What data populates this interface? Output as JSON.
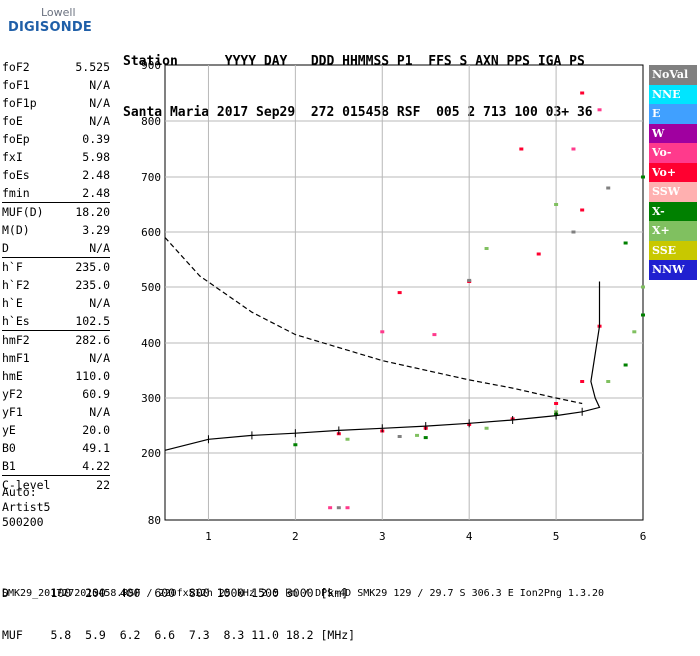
{
  "logo": {
    "top": "Lowell",
    "main": "DIGISONDE"
  },
  "header": {
    "line1": "Station      YYYY DAY   DDD HHMMSS P1  FFS S AXN PPS IGA PS",
    "line2": "Santa Maria 2017 Sep29  272 015458 RSF  005 2 713 100 03+ 36"
  },
  "params": [
    {
      "name": "foF2",
      "value": "5.525"
    },
    {
      "name": "foF1",
      "value": "N/A"
    },
    {
      "name": "foF1p",
      "value": "N/A"
    },
    {
      "name": "foE",
      "value": "N/A"
    },
    {
      "name": "foEp",
      "value": "0.39"
    },
    {
      "name": "fxI",
      "value": "5.98"
    },
    {
      "name": "foEs",
      "value": "2.48"
    },
    {
      "name": "fmin",
      "value": "2.48"
    },
    {
      "name": "MUF(D)",
      "value": "18.20"
    },
    {
      "name": "M(D)",
      "value": "3.29"
    },
    {
      "name": "D",
      "value": "N/A"
    },
    {
      "name": "h`F",
      "value": "235.0"
    },
    {
      "name": "h`F2",
      "value": "235.0"
    },
    {
      "name": "h`E",
      "value": "N/A"
    },
    {
      "name": "h`Es",
      "value": "102.5"
    },
    {
      "name": "hmF2",
      "value": "282.6"
    },
    {
      "name": "hmF1",
      "value": "N/A"
    },
    {
      "name": "hmE",
      "value": "110.0"
    },
    {
      "name": "yF2",
      "value": "60.9"
    },
    {
      "name": "yF1",
      "value": "N/A"
    },
    {
      "name": "yE",
      "value": "20.0"
    },
    {
      "name": "B0",
      "value": "49.1"
    },
    {
      "name": "B1",
      "value": "4.22"
    },
    {
      "name": "C-level",
      "value": "22"
    }
  ],
  "auto": {
    "line1": "Auto:",
    "line2": "Artist5",
    "line3": "500200"
  },
  "legend": [
    {
      "label": "NoVal",
      "color": "#808080"
    },
    {
      "label": "NNE",
      "color": "#00e5ff"
    },
    {
      "label": "E",
      "color": "#40a0ff"
    },
    {
      "label": "W",
      "color": "#a000a0"
    },
    {
      "label": "Vo-",
      "color": "#ff3a8c"
    },
    {
      "label": "Vo+",
      "color": "#ff0030"
    },
    {
      "label": "SSW",
      "color": "#ffb0b0"
    },
    {
      "label": "X-",
      "color": "#008000"
    },
    {
      "label": "X+",
      "color": "#80c060"
    },
    {
      "label": "SSE",
      "color": "#c8c800"
    },
    {
      "label": "NNW",
      "color": "#2020d0"
    }
  ],
  "footer": {
    "line1": "D      100  200  400  600  800 1000 1500 3000 [km]",
    "line2": "MUF    5.8  5.9  6.2  6.6  7.3  8.3 11.0 18.2 [MHz]",
    "line3": "SMK29_2017272015458.RSF / 220fx512h 25 kHz 2.5 km / DPS-4D SMK29 129 / 29.7 S 306.3 E Ion2Png 1.3.20"
  },
  "chart_data": {
    "type": "scatter",
    "title": "",
    "xlabel": "",
    "ylabel": "",
    "xlim": [
      0.5,
      6.0
    ],
    "ylim": [
      80,
      900
    ],
    "x_ticks": [
      1,
      2,
      3,
      4,
      5,
      6
    ],
    "y_ticks": [
      80,
      200,
      300,
      400,
      500,
      600,
      700,
      800,
      900
    ],
    "y_scale": "non-linear (ionogram virtual height)",
    "grid": true,
    "legend_position": "right",
    "series": [
      {
        "name": "Vo+",
        "points": [
          [
            2.5,
            235
          ],
          [
            3.0,
            240
          ],
          [
            3.5,
            245
          ],
          [
            4.0,
            252
          ],
          [
            4.5,
            262
          ],
          [
            5.0,
            290
          ],
          [
            5.3,
            330
          ],
          [
            5.5,
            430
          ],
          [
            3.2,
            490
          ],
          [
            4.0,
            510
          ],
          [
            4.8,
            560
          ],
          [
            5.3,
            640
          ],
          [
            4.6,
            750
          ],
          [
            5.3,
            850
          ]
        ]
      },
      {
        "name": "X+",
        "points": [
          [
            2.6,
            225
          ],
          [
            3.4,
            232
          ],
          [
            4.2,
            245
          ],
          [
            5.0,
            275
          ],
          [
            5.6,
            330
          ],
          [
            5.9,
            420
          ],
          [
            6.0,
            500
          ],
          [
            4.2,
            570
          ],
          [
            5.0,
            650
          ]
        ]
      },
      {
        "name": "X-",
        "points": [
          [
            2.0,
            215
          ],
          [
            3.5,
            228
          ],
          [
            5.0,
            270
          ],
          [
            5.8,
            360
          ],
          [
            6.0,
            450
          ],
          [
            5.8,
            580
          ],
          [
            6.0,
            700
          ]
        ]
      },
      {
        "name": "Vo-",
        "points": [
          [
            2.4,
            102
          ],
          [
            2.6,
            102
          ],
          [
            3.0,
            420
          ],
          [
            3.6,
            415
          ],
          [
            5.2,
            750
          ],
          [
            5.5,
            820
          ]
        ]
      },
      {
        "name": "NoVal",
        "points": [
          [
            2.5,
            102
          ],
          [
            3.2,
            230
          ],
          [
            4.0,
            512
          ],
          [
            5.2,
            600
          ],
          [
            5.6,
            680
          ]
        ]
      }
    ],
    "profile_curve": [
      [
        0.5,
        205
      ],
      [
        1.0,
        225
      ],
      [
        1.5,
        232
      ],
      [
        2.0,
        236
      ],
      [
        2.5,
        241
      ],
      [
        3.0,
        245
      ],
      [
        3.5,
        249
      ],
      [
        4.0,
        254
      ],
      [
        4.5,
        260
      ],
      [
        5.0,
        268
      ],
      [
        5.3,
        275
      ],
      [
        5.5,
        283
      ],
      [
        5.45,
        300
      ],
      [
        5.4,
        330
      ],
      [
        5.5,
        430
      ],
      [
        5.5,
        510
      ]
    ],
    "dashed_curve": [
      [
        0.5,
        590
      ],
      [
        0.9,
        520
      ],
      [
        1.5,
        455
      ],
      [
        2.0,
        415
      ],
      [
        3.0,
        368
      ],
      [
        4.0,
        333
      ],
      [
        4.5,
        318
      ],
      [
        5.0,
        300
      ],
      [
        5.3,
        290
      ]
    ]
  }
}
